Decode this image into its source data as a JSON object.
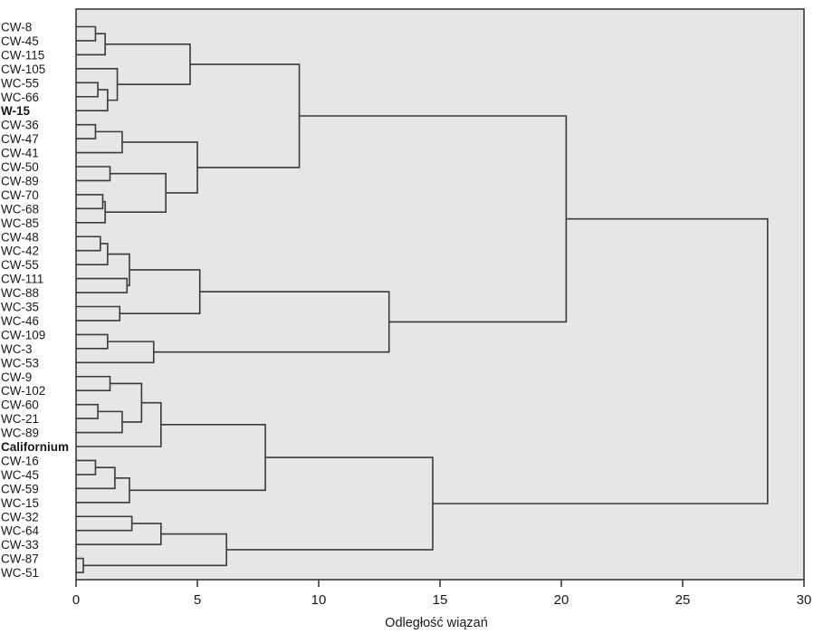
{
  "chart_data": {
    "type": "dendrogram",
    "title": "",
    "xlabel": "Odległość wiązań",
    "xlim": [
      0,
      30
    ],
    "xticks": [
      0,
      5,
      10,
      15,
      20,
      25,
      30
    ],
    "grid": false,
    "background": "#e6e6e6",
    "line_color": "#3a3a3a",
    "leaves": [
      {
        "label": "CW-8",
        "bold": false
      },
      {
        "label": "CW-45",
        "bold": false
      },
      {
        "label": "CW-115",
        "bold": false
      },
      {
        "label": "CW-105",
        "bold": false
      },
      {
        "label": "WC-55",
        "bold": false
      },
      {
        "label": "WC-66",
        "bold": false
      },
      {
        "label": "W-15",
        "bold": true
      },
      {
        "label": "CW-36",
        "bold": false
      },
      {
        "label": "CW-47",
        "bold": false
      },
      {
        "label": "CW-41",
        "bold": false
      },
      {
        "label": "CW-50",
        "bold": false
      },
      {
        "label": "CW-89",
        "bold": false
      },
      {
        "label": "CW-70",
        "bold": false
      },
      {
        "label": "WC-68",
        "bold": false
      },
      {
        "label": "WC-85",
        "bold": false
      },
      {
        "label": "CW-48",
        "bold": false
      },
      {
        "label": "WC-42",
        "bold": false
      },
      {
        "label": "CW-55",
        "bold": false
      },
      {
        "label": "CW-111",
        "bold": false
      },
      {
        "label": "WC-88",
        "bold": false
      },
      {
        "label": "WC-35",
        "bold": false
      },
      {
        "label": "WC-46",
        "bold": false
      },
      {
        "label": "CW-109",
        "bold": false
      },
      {
        "label": "WC-3",
        "bold": false
      },
      {
        "label": "WC-53",
        "bold": false
      },
      {
        "label": "CW-9",
        "bold": false
      },
      {
        "label": "CW-102",
        "bold": false
      },
      {
        "label": "CW-60",
        "bold": false
      },
      {
        "label": "WC-21",
        "bold": false
      },
      {
        "label": "WC-89",
        "bold": false
      },
      {
        "label": "Californium",
        "bold": true
      },
      {
        "label": "CW-16",
        "bold": false
      },
      {
        "label": "WC-45",
        "bold": false
      },
      {
        "label": "CW-59",
        "bold": false
      },
      {
        "label": "WC-15",
        "bold": false
      },
      {
        "label": "CW-32",
        "bold": false
      },
      {
        "label": "WC-64",
        "bold": false
      },
      {
        "label": "CW-33",
        "bold": false
      },
      {
        "label": "CW-87",
        "bold": false
      },
      {
        "label": "WC-51",
        "bold": false
      }
    ],
    "merges": [
      {
        "id": "m1",
        "left": 0,
        "right": 1,
        "height": 0.8
      },
      {
        "id": "m2",
        "left": "m1",
        "right": 2,
        "height": 1.2
      },
      {
        "id": "m3",
        "left": 4,
        "right": 5,
        "height": 0.9
      },
      {
        "id": "m4",
        "left": "m3",
        "right": 6,
        "height": 1.3
      },
      {
        "id": "m5",
        "left": 3,
        "right": "m4",
        "height": 1.7
      },
      {
        "id": "m6",
        "left": "m2",
        "right": "m5",
        "height": 4.7
      },
      {
        "id": "m7",
        "left": 7,
        "right": 8,
        "height": 0.8
      },
      {
        "id": "m8",
        "left": "m7",
        "right": 9,
        "height": 1.9
      },
      {
        "id": "m9",
        "left": 10,
        "right": 11,
        "height": 1.4
      },
      {
        "id": "m10",
        "left": 12,
        "right": 13,
        "height": 1.1
      },
      {
        "id": "m11",
        "left": "m10",
        "right": 14,
        "height": 1.2
      },
      {
        "id": "m12",
        "left": "m9",
        "right": "m11",
        "height": 3.7
      },
      {
        "id": "m13",
        "left": "m8",
        "right": "m12",
        "height": 5.0
      },
      {
        "id": "m14",
        "left": "m6",
        "right": "m13",
        "height": 9.2
      },
      {
        "id": "m15",
        "left": 15,
        "right": 16,
        "height": 1.0
      },
      {
        "id": "m16",
        "left": "m15",
        "right": 17,
        "height": 1.3
      },
      {
        "id": "m17",
        "left": 18,
        "right": 19,
        "height": 2.1
      },
      {
        "id": "m18",
        "left": "m16",
        "right": "m17",
        "height": 2.2
      },
      {
        "id": "m19",
        "left": 20,
        "right": 21,
        "height": 1.8
      },
      {
        "id": "m20",
        "left": "m18",
        "right": "m19",
        "height": 5.1
      },
      {
        "id": "m21",
        "left": 22,
        "right": 23,
        "height": 1.3
      },
      {
        "id": "m22",
        "left": "m21",
        "right": 24,
        "height": 3.2
      },
      {
        "id": "m23",
        "left": "m20",
        "right": "m22",
        "height": 12.9
      },
      {
        "id": "m24",
        "left": "m14",
        "right": "m23",
        "height": 20.2
      },
      {
        "id": "m25",
        "left": 25,
        "right": 26,
        "height": 1.4
      },
      {
        "id": "m26",
        "left": 27,
        "right": 28,
        "height": 0.9
      },
      {
        "id": "m27",
        "left": "m26",
        "right": 29,
        "height": 1.9
      },
      {
        "id": "m28",
        "left": "m25",
        "right": "m27",
        "height": 2.7
      },
      {
        "id": "m29",
        "left": "m28",
        "right": 30,
        "height": 3.5
      },
      {
        "id": "m30",
        "left": 31,
        "right": 32,
        "height": 0.8
      },
      {
        "id": "m31",
        "left": "m30",
        "right": 33,
        "height": 1.6
      },
      {
        "id": "m32",
        "left": "m31",
        "right": 34,
        "height": 2.2
      },
      {
        "id": "m33",
        "left": "m29",
        "right": "m32",
        "height": 7.8
      },
      {
        "id": "m34",
        "left": 35,
        "right": 36,
        "height": 2.3
      },
      {
        "id": "m35",
        "left": "m34",
        "right": 37,
        "height": 3.5
      },
      {
        "id": "m36",
        "left": 38,
        "right": 39,
        "height": 0.3
      },
      {
        "id": "m37",
        "left": "m35",
        "right": "m36",
        "height": 6.2
      },
      {
        "id": "m38",
        "left": "m33",
        "right": "m37",
        "height": 14.7
      },
      {
        "id": "m39",
        "left": "m24",
        "right": "m38",
        "height": 28.5
      }
    ]
  }
}
